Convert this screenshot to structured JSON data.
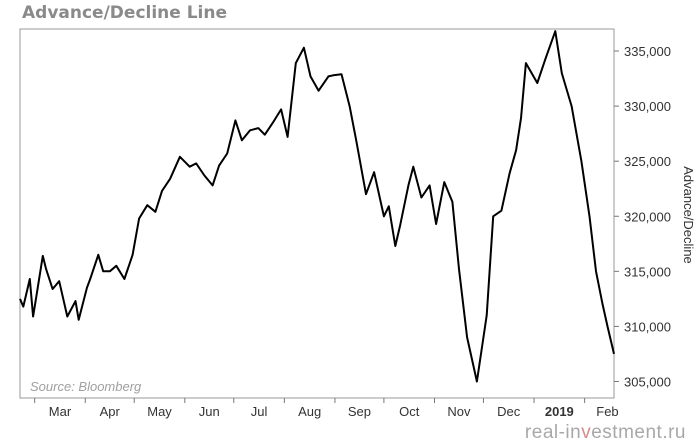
{
  "title": "Advance/Decline Line",
  "source": "Source: Bloomberg",
  "watermark": {
    "left": "real-in",
    "highlight": "v",
    "right": "estment.ru"
  },
  "colors": {
    "line": "#000000",
    "frame": "#999999",
    "title": "#8a8a8a",
    "source": "#a0a0a0"
  },
  "chart_data": {
    "type": "line",
    "title": "Advance/Decline Line",
    "ylabel": "Advance/Decline",
    "xlabel": "",
    "ylim": [
      303500,
      337000
    ],
    "y_ticks": [
      305000,
      310000,
      315000,
      320000,
      325000,
      330000,
      335000
    ],
    "y_tick_labels": [
      "305,000",
      "310,000",
      "315,000",
      "320,000",
      "325,000",
      "330,000",
      "335,000"
    ],
    "x_tick_labels": [
      "Mar",
      "Apr",
      "May",
      "Jun",
      "Jul",
      "Aug",
      "Sep",
      "Oct",
      "Nov",
      "Dec",
      "2019",
      "Feb"
    ],
    "grid": false,
    "source_note": "Source: Bloomberg",
    "series": [
      {
        "x": [
          "2018-02-20",
          "2018-02-22",
          "2018-02-26",
          "2018-02-28",
          "2018-03-02",
          "2018-03-06",
          "2018-03-08",
          "2018-03-12",
          "2018-03-16",
          "2018-03-21",
          "2018-03-26",
          "2018-03-28",
          "2018-04-02",
          "2018-04-04",
          "2018-04-09",
          "2018-04-12",
          "2018-04-16",
          "2018-04-20",
          "2018-04-25",
          "2018-04-30",
          "2018-05-04",
          "2018-05-09",
          "2018-05-14",
          "2018-05-18",
          "2018-05-23",
          "2018-05-29",
          "2018-06-04",
          "2018-06-08",
          "2018-06-13",
          "2018-06-18",
          "2018-06-22",
          "2018-06-27",
          "2018-07-02",
          "2018-07-06",
          "2018-07-11",
          "2018-07-16",
          "2018-07-20",
          "2018-07-25",
          "2018-07-30",
          "2018-08-03",
          "2018-08-08",
          "2018-08-13",
          "2018-08-17",
          "2018-08-22",
          "2018-08-28",
          "2018-08-31",
          "2018-09-05",
          "2018-09-10",
          "2018-09-14",
          "2018-09-20",
          "2018-09-25",
          "2018-10-01",
          "2018-10-04",
          "2018-10-08",
          "2018-10-11",
          "2018-10-16",
          "2018-10-19",
          "2018-10-24",
          "2018-10-29",
          "2018-11-02",
          "2018-11-07",
          "2018-11-12",
          "2018-11-16",
          "2018-11-21",
          "2018-11-27",
          "2018-12-03",
          "2018-12-07",
          "2018-12-12",
          "2018-12-17",
          "2018-12-21",
          "2018-12-24",
          "2018-12-27",
          "2019-01-03",
          "2019-01-08",
          "2019-01-14",
          "2019-01-18",
          "2019-01-24",
          "2019-01-30",
          "2019-02-04",
          "2019-02-08",
          "2019-02-12",
          "2019-02-15",
          "2019-02-19"
        ],
        "y": [
          312500,
          311800,
          314300,
          310900,
          312700,
          316400,
          315200,
          313400,
          314100,
          310900,
          312300,
          310600,
          313500,
          314300,
          316500,
          315000,
          315000,
          315500,
          314300,
          316500,
          319800,
          321000,
          320400,
          322300,
          323400,
          325400,
          324500,
          324800,
          323700,
          322800,
          324600,
          325700,
          328700,
          326900,
          327800,
          328000,
          327400,
          328500,
          329700,
          327200,
          333900,
          335300,
          332700,
          331400,
          332700,
          332800,
          332900,
          330000,
          326900,
          322000,
          324000,
          320000,
          320900,
          317300,
          319200,
          322800,
          324500,
          321700,
          322800,
          319300,
          323100,
          321300,
          315200,
          309000,
          305000,
          311000,
          320000,
          320500,
          323900,
          326000,
          328900,
          333900,
          332100,
          334300,
          336800,
          333000,
          330000,
          325000,
          320000,
          315000,
          312000,
          310000,
          307500
        ]
      }
    ]
  }
}
